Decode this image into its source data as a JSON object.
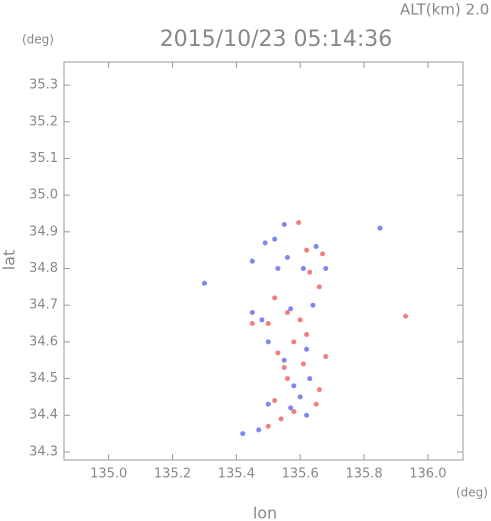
{
  "chart_data": {
    "type": "scatter",
    "title": "2015/10/23 05:14:36",
    "annotation": "ALT(km)  2.0",
    "y_unit": "(deg)",
    "x_unit": "(deg)",
    "x_label": "lon",
    "y_label": "lat",
    "xlim": [
      134.86,
      136.11
    ],
    "ylim": [
      34.278,
      35.363
    ],
    "xticks": [
      {
        "value": 135,
        "label": "135.0"
      },
      135.2,
      135.4,
      135.6,
      135.8,
      {
        "value": 136,
        "label": "136.0"
      }
    ],
    "yticks": [
      34.3,
      34.4,
      34.5,
      34.6,
      34.7,
      34.8,
      34.9,
      {
        "value": 35,
        "label": "35.0"
      },
      35.1,
      35.2,
      35.3
    ],
    "series": [
      {
        "color": "#f08080",
        "x": [
          135.595,
          135.62,
          135.67,
          135.63,
          135.66,
          135.52,
          135.56,
          135.6,
          135.5,
          135.58,
          135.62,
          135.53,
          135.61,
          135.56,
          135.66,
          135.52,
          135.58,
          135.54,
          135.5,
          135.93,
          135.45,
          135.68,
          135.55,
          135.65
        ],
        "y": [
          34.925,
          34.85,
          34.84,
          34.79,
          34.75,
          34.72,
          34.68,
          34.66,
          34.65,
          34.6,
          34.62,
          34.57,
          34.54,
          34.5,
          34.47,
          34.44,
          34.41,
          34.39,
          34.37,
          34.67,
          34.65,
          34.56,
          34.53,
          34.43
        ]
      },
      {
        "color": "#7f86f0",
        "x": [
          135.55,
          135.52,
          135.49,
          135.56,
          135.65,
          135.85,
          135.61,
          135.68,
          135.3,
          135.45,
          135.48,
          135.57,
          135.64,
          135.5,
          135.62,
          135.55,
          135.58,
          135.63,
          135.6,
          135.57,
          135.62,
          135.5,
          135.42,
          135.47,
          135.53,
          135.45
        ],
        "y": [
          34.92,
          34.88,
          34.87,
          34.83,
          34.86,
          34.91,
          34.8,
          34.8,
          34.76,
          34.68,
          34.66,
          34.69,
          34.7,
          34.6,
          34.58,
          34.55,
          34.48,
          34.5,
          34.45,
          34.42,
          34.4,
          34.43,
          34.35,
          34.36,
          34.8,
          34.82
        ]
      }
    ]
  }
}
